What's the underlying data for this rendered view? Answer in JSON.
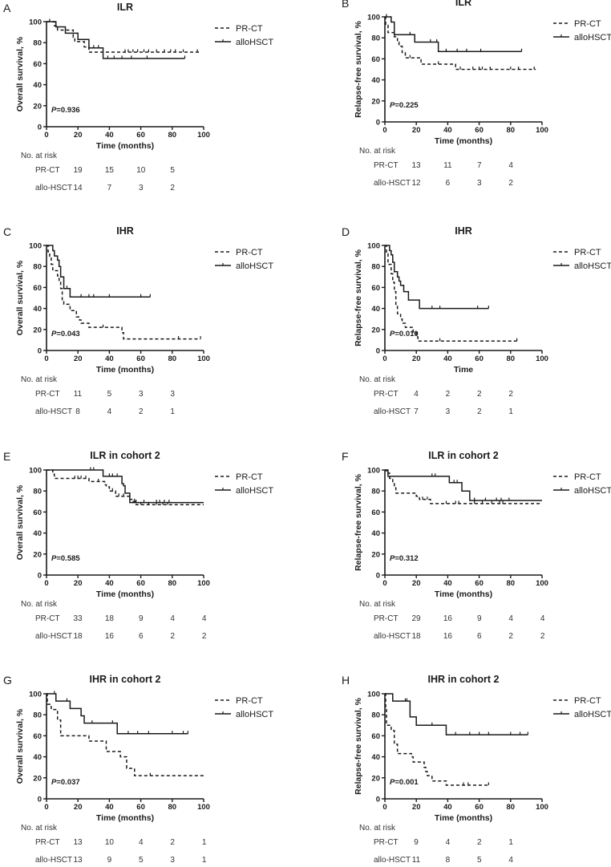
{
  "legend": {
    "dashed": "PR-CT",
    "solid": "alloHSCT"
  },
  "risk_header": "No. at risk",
  "risk_labels": [
    "PR-CT",
    "allo-HSCT"
  ],
  "colors": {
    "line": "#1a1a1a"
  },
  "chart_data": [
    {
      "panel": "A",
      "type": "line",
      "title": "ILR",
      "ylabel": "Overall survival, %",
      "xlabel": "Time (months)",
      "p_prefix": "P",
      "p_value": "=0.936",
      "xlim": [
        0,
        100
      ],
      "ylim": [
        0,
        100
      ],
      "xticks": [
        "0",
        "20",
        "40",
        "60",
        "80",
        "100"
      ],
      "yticks": [
        "0",
        "20",
        "40",
        "60",
        "80",
        "100"
      ],
      "series": [
        {
          "name": "PR-CT",
          "style": "dashed",
          "steps": [
            [
              0,
              100
            ],
            [
              5,
              96
            ],
            [
              7,
              92
            ],
            [
              17,
              85
            ],
            [
              18,
              81
            ],
            [
              24,
              76
            ],
            [
              27,
              71
            ]
          ],
          "end": 97,
          "censored": [
            2,
            50,
            52,
            55,
            58,
            62,
            65,
            70,
            75,
            79,
            82,
            87,
            96
          ]
        },
        {
          "name": "alloHSCT",
          "style": "solid",
          "steps": [
            [
              0,
              100
            ],
            [
              6,
              95
            ],
            [
              12,
              89
            ],
            [
              20,
              83
            ],
            [
              27,
              75
            ],
            [
              36,
              65
            ]
          ],
          "end": 88,
          "censored": [
            30,
            33,
            39,
            43,
            48,
            54,
            64,
            88
          ]
        }
      ],
      "risk": [
        [
          "19",
          "15",
          "10",
          "5"
        ],
        [
          "14",
          "7",
          "3",
          "2"
        ]
      ]
    },
    {
      "panel": "B",
      "type": "line",
      "title": "ILR",
      "ylabel": "Relapse-free survival, %",
      "xlabel": "Time (months)",
      "p_prefix": "P",
      "p_value": "=0.225",
      "xlim": [
        0,
        100
      ],
      "ylim": [
        0,
        100
      ],
      "xticks": [
        "0",
        "20",
        "40",
        "60",
        "80",
        "100"
      ],
      "yticks": [
        "0",
        "20",
        "40",
        "60",
        "80",
        "100"
      ],
      "series": [
        {
          "name": "PR-CT",
          "style": "dashed",
          "steps": [
            [
              0,
              100
            ],
            [
              0.5,
              92
            ],
            [
              2,
              85
            ],
            [
              6,
              81
            ],
            [
              8,
              76
            ],
            [
              9,
              72
            ],
            [
              11,
              66
            ],
            [
              13,
              61
            ],
            [
              23,
              55
            ],
            [
              45,
              50
            ]
          ],
          "end": 96,
          "censored": [
            16,
            34,
            48,
            56,
            60,
            62,
            67,
            80,
            85,
            95
          ]
        },
        {
          "name": "alloHSCT",
          "style": "solid",
          "steps": [
            [
              0,
              100
            ],
            [
              4,
              95
            ],
            [
              6,
              83
            ],
            [
              19,
              76
            ],
            [
              34,
              67
            ]
          ],
          "end": 87,
          "censored": [
            1,
            16,
            29,
            33,
            39,
            46,
            52,
            61,
            87
          ]
        }
      ],
      "risk": [
        [
          "13",
          "11",
          "7",
          "4"
        ],
        [
          "12",
          "6",
          "3",
          "2"
        ]
      ]
    },
    {
      "panel": "C",
      "type": "line",
      "title": "IHR",
      "ylabel": "Overall survival, %",
      "xlabel": "Time (months)",
      "p_prefix": "P",
      "p_value": "=0.043",
      "xlim": [
        0,
        100
      ],
      "ylim": [
        0,
        100
      ],
      "xticks": [
        "0",
        "20",
        "40",
        "60",
        "80",
        "100"
      ],
      "yticks": [
        "0",
        "20",
        "40",
        "60",
        "80",
        "100"
      ],
      "series": [
        {
          "name": "PR-CT",
          "style": "dashed",
          "steps": [
            [
              0,
              100
            ],
            [
              1,
              94
            ],
            [
              2,
              88
            ],
            [
              3,
              82
            ],
            [
              4,
              76
            ],
            [
              7,
              71
            ],
            [
              8,
              65
            ],
            [
              9,
              59
            ],
            [
              10,
              47
            ],
            [
              11,
              44
            ],
            [
              15,
              38
            ],
            [
              19,
              32
            ],
            [
              21,
              29
            ],
            [
              22,
              26
            ],
            [
              27,
              22
            ],
            [
              48,
              17
            ],
            [
              49,
              11
            ]
          ],
          "end": 98,
          "censored": [
            36,
            84,
            98
          ]
        },
        {
          "name": "alloHSCT",
          "style": "solid",
          "steps": [
            [
              0,
              100
            ],
            [
              4,
              95
            ],
            [
              5,
              90
            ],
            [
              7,
              86
            ],
            [
              8,
              80
            ],
            [
              9,
              70
            ],
            [
              11,
              59
            ],
            [
              15,
              51
            ]
          ],
          "end": 66,
          "censored": [
            13,
            22,
            27,
            30,
            40,
            60,
            66
          ]
        }
      ],
      "risk": [
        [
          "11",
          "5",
          "3",
          "3"
        ],
        [
          "8",
          "4",
          "2",
          "1"
        ]
      ]
    },
    {
      "panel": "D",
      "type": "line",
      "title": "IHR",
      "ylabel": "Relapse-free survival, %",
      "xlabel": "Time",
      "p_prefix": "P",
      "p_value": "=0.010",
      "xlim": [
        0,
        100
      ],
      "ylim": [
        0,
        100
      ],
      "xticks": [
        "0",
        "20",
        "40",
        "60",
        "80",
        "100"
      ],
      "yticks": [
        "0",
        "20",
        "40",
        "60",
        "80",
        "100"
      ],
      "series": [
        {
          "name": "PR-CT",
          "style": "dashed",
          "steps": [
            [
              0,
              100
            ],
            [
              1,
              92
            ],
            [
              2,
              82
            ],
            [
              4,
              73
            ],
            [
              5,
              65
            ],
            [
              6,
              56
            ],
            [
              7,
              43
            ],
            [
              8,
              35
            ],
            [
              10,
              30
            ],
            [
              11,
              26
            ],
            [
              13,
              22
            ],
            [
              18,
              17
            ],
            [
              20,
              13
            ],
            [
              21,
              9
            ]
          ],
          "end": 84,
          "censored": [
            35,
            84
          ]
        },
        {
          "name": "alloHSCT",
          "style": "solid",
          "steps": [
            [
              0,
              100
            ],
            [
              3,
              95
            ],
            [
              4,
              91
            ],
            [
              5,
              84
            ],
            [
              6,
              75
            ],
            [
              8,
              70
            ],
            [
              9,
              66
            ],
            [
              10,
              62
            ],
            [
              12,
              56
            ],
            [
              15,
              48
            ],
            [
              22,
              40
            ]
          ],
          "end": 66,
          "censored": [
            30,
            35,
            59,
            66
          ]
        }
      ],
      "risk": [
        [
          "4",
          "2",
          "2",
          "2"
        ],
        [
          "7",
          "3",
          "2",
          "1"
        ]
      ]
    },
    {
      "panel": "E",
      "type": "line",
      "title": "ILR in cohort 2",
      "ylabel": "Overall survival, %",
      "xlabel": "Time (months)",
      "p_prefix": "P",
      "p_value": "=0.585",
      "xlim": [
        0,
        100
      ],
      "ylim": [
        0,
        100
      ],
      "xticks": [
        "0",
        "20",
        "40",
        "60",
        "80",
        "100"
      ],
      "yticks": [
        "0",
        "20",
        "40",
        "60",
        "80",
        "100"
      ],
      "series": [
        {
          "name": "PR-CT",
          "style": "dashed",
          "steps": [
            [
              0,
              100
            ],
            [
              4,
              96
            ],
            [
              5,
              92
            ],
            [
              27,
              89
            ],
            [
              37,
              86
            ],
            [
              38,
              84
            ],
            [
              40,
              80
            ],
            [
              44,
              75
            ],
            [
              53,
              72
            ],
            [
              55,
              70
            ],
            [
              57,
              67
            ]
          ],
          "end": 100,
          "censored": [
            18,
            20,
            22,
            25,
            33,
            42,
            46,
            49,
            56,
            60,
            65,
            70,
            74,
            77
          ]
        },
        {
          "name": "alloHSCT",
          "style": "solid",
          "steps": [
            [
              0,
              100
            ],
            [
              36,
              94
            ],
            [
              48,
              87
            ],
            [
              49,
              85
            ],
            [
              50,
              78
            ],
            [
              53,
              69
            ]
          ],
          "end": 100,
          "censored": [
            28,
            30,
            40,
            42,
            45,
            57,
            62,
            70,
            72,
            75,
            78
          ]
        }
      ],
      "risk": [
        [
          "33",
          "18",
          "9",
          "4",
          "4"
        ],
        [
          "18",
          "16",
          "6",
          "2",
          "2"
        ]
      ]
    },
    {
      "panel": "F",
      "type": "line",
      "title": "ILR in cohort 2",
      "ylabel": "Relapse-free survival, %",
      "xlabel": "Time (months)",
      "p_prefix": "P",
      "p_value": "=0.312",
      "xlim": [
        0,
        100
      ],
      "ylim": [
        0,
        100
      ],
      "xticks": [
        "0",
        "20",
        "40",
        "60",
        "80",
        "100"
      ],
      "yticks": [
        "0",
        "20",
        "40",
        "60",
        "80",
        "100"
      ],
      "series": [
        {
          "name": "PR-CT",
          "style": "dashed",
          "steps": [
            [
              0,
              100
            ],
            [
              1,
              97
            ],
            [
              3,
              92
            ],
            [
              5,
              87
            ],
            [
              6,
              83
            ],
            [
              7,
              78
            ],
            [
              20,
              75
            ],
            [
              22,
              72
            ],
            [
              29,
              68
            ]
          ],
          "end": 100,
          "censored": [
            24,
            27,
            39,
            45,
            47,
            57,
            62,
            68,
            73,
            75
          ]
        },
        {
          "name": "alloHSCT",
          "style": "solid",
          "steps": [
            [
              0,
              100
            ],
            [
              2,
              94
            ],
            [
              41,
              88
            ],
            [
              49,
              80
            ],
            [
              54,
              71
            ]
          ],
          "end": 100,
          "censored": [
            30,
            32,
            44,
            46,
            57,
            64,
            71,
            74,
            79
          ]
        }
      ],
      "risk": [
        [
          "29",
          "16",
          "9",
          "4",
          "4"
        ],
        [
          "18",
          "16",
          "6",
          "2",
          "2"
        ]
      ]
    },
    {
      "panel": "G",
      "type": "line",
      "title": "IHR in cohort 2",
      "ylabel": "Overall survival, %",
      "xlabel": "Time (months)",
      "p_prefix": "P",
      "p_value": "=0.037",
      "xlim": [
        0,
        100
      ],
      "ylim": [
        0,
        100
      ],
      "xticks": [
        "0",
        "20",
        "40",
        "60",
        "80",
        "100"
      ],
      "yticks": [
        "0",
        "20",
        "40",
        "60",
        "80",
        "100"
      ],
      "series": [
        {
          "name": "PR-CT",
          "style": "dashed",
          "steps": [
            [
              0,
              100
            ],
            [
              0.5,
              90
            ],
            [
              3,
              85
            ],
            [
              7,
              75
            ],
            [
              9,
              60
            ],
            [
              27,
              55
            ],
            [
              38,
              45
            ],
            [
              47,
              40
            ],
            [
              51,
              29
            ],
            [
              56,
              22
            ]
          ],
          "end": 100,
          "censored": [
            66
          ]
        },
        {
          "name": "alloHSCT",
          "style": "solid",
          "steps": [
            [
              0,
              100
            ],
            [
              6,
              93
            ],
            [
              15,
              86
            ],
            [
              22,
              79
            ],
            [
              24,
              72
            ],
            [
              45,
              62
            ]
          ],
          "end": 90,
          "censored": [
            5,
            13,
            29,
            42,
            52,
            58,
            65,
            80,
            87,
            90
          ]
        }
      ],
      "risk": [
        [
          "13",
          "10",
          "4",
          "2",
          "1"
        ],
        [
          "13",
          "9",
          "5",
          "3",
          "1"
        ]
      ]
    },
    {
      "panel": "H",
      "type": "line",
      "title": "IHR in cohort 2",
      "ylabel": "Relapse-free survival, %",
      "xlabel": "Time (months)",
      "p_prefix": "P",
      "p_value": "=0.001",
      "xlim": [
        0,
        100
      ],
      "ylim": [
        0,
        100
      ],
      "xticks": [
        "0",
        "20",
        "40",
        "60",
        "80",
        "100"
      ],
      "yticks": [
        "0",
        "20",
        "40",
        "60",
        "80",
        "100"
      ],
      "series": [
        {
          "name": "PR-CT",
          "style": "dashed",
          "steps": [
            [
              0,
              100
            ],
            [
              0.5,
              85
            ],
            [
              1,
              70
            ],
            [
              4,
              65
            ],
            [
              6,
              52
            ],
            [
              8,
              43
            ],
            [
              17,
              40
            ],
            [
              18,
              35
            ],
            [
              25,
              30
            ],
            [
              26,
              26
            ],
            [
              27,
              22
            ],
            [
              30,
              17
            ],
            [
              39,
              13
            ]
          ],
          "end": 66,
          "censored": [
            50,
            53,
            66
          ]
        },
        {
          "name": "alloHSCT",
          "style": "solid",
          "steps": [
            [
              0,
              100
            ],
            [
              5,
              93
            ],
            [
              16,
              78
            ],
            [
              20,
              70
            ],
            [
              39,
              61
            ]
          ],
          "end": 91,
          "censored": [
            13,
            14,
            30,
            45,
            54,
            60,
            66,
            80,
            86,
            91
          ]
        }
      ],
      "risk": [
        [
          "9",
          "4",
          "2",
          "1"
        ],
        [
          "11",
          "8",
          "5",
          "4"
        ]
      ]
    }
  ]
}
